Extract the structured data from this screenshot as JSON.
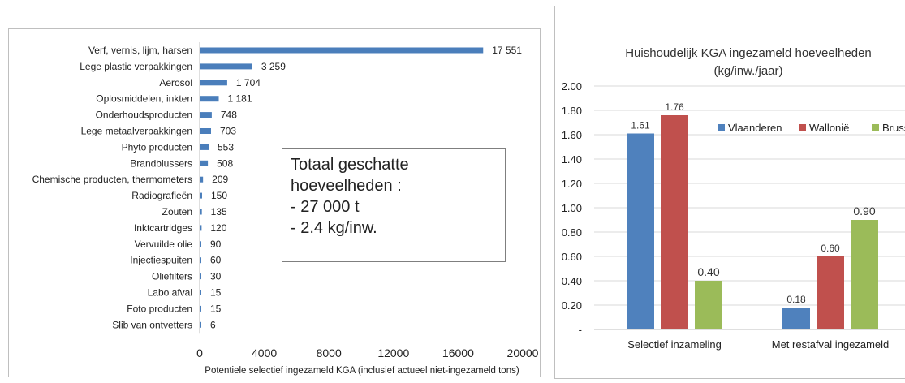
{
  "left_chart": {
    "xlabel": "Potentiele selectief ingezameld KGA (inclusief actueel niet-ingezameld tons)"
  },
  "callout": {
    "lines": [
      "Totaal geschatte",
      "hoeveelheden :",
      "- 27 000 t",
      "- 2.4 kg/inw."
    ]
  },
  "right_chart": {
    "title_line1": "Huishoudelijk  KGA ingezameld hoeveelheden",
    "title_line2": "(kg/inw./jaar)"
  },
  "chart_data": [
    {
      "type": "bar",
      "orientation": "horizontal",
      "categories": [
        "Verf, vernis, lijm, harsen",
        "Lege plastic verpakkingen",
        "Aerosol",
        "Oplosmiddelen, inkten",
        "Onderhoudsproducten",
        "Lege metaalverpakkingen",
        "Phyto producten",
        "Brandblussers",
        "Chemische producten, thermometers",
        "Radiografieën",
        "Zouten",
        "Inktcartridges",
        "Vervuilde olie",
        "Injectiespuiten",
        "Oliefilters",
        "Labo afval",
        "Foto producten",
        "Slib van ontvetters"
      ],
      "values": [
        17551,
        3259,
        1704,
        1181,
        748,
        703,
        553,
        508,
        209,
        150,
        135,
        120,
        90,
        60,
        30,
        15,
        15,
        6
      ],
      "value_labels": [
        "17 551",
        "3 259",
        "1 704",
        "1 181",
        "748",
        "703",
        "553",
        "508",
        "209",
        "150",
        "135",
        "120",
        "90",
        "60",
        "30",
        "15",
        "15",
        "6"
      ],
      "xlim": [
        0,
        20000
      ],
      "xticks": [
        0,
        4000,
        8000,
        12000,
        16000,
        20000
      ],
      "xtick_labels": [
        "0",
        "4000",
        "8000",
        "12000",
        "16000",
        "20000"
      ],
      "xlabel": "Potentiele selectief ingezameld KGA (inclusief actueel niet-ingezameld tons)",
      "color": "#4a7ebb",
      "grid": false
    },
    {
      "type": "bar",
      "title": "Huishoudelijk  KGA ingezameld hoeveelheden (kg/inw./jaar)",
      "categories": [
        "Selectief inzameling",
        "Met restafval ingezameld"
      ],
      "series": [
        {
          "name": "Vlaanderen",
          "values": [
            1.61,
            0.18
          ],
          "labels": [
            "1.61",
            "0.18"
          ],
          "color": "#4f81bd"
        },
        {
          "name": "Wallonië",
          "values": [
            1.76,
            0.6
          ],
          "labels": [
            "1.76",
            "0.60"
          ],
          "color": "#c0504d"
        },
        {
          "name": "Brussel",
          "values": [
            0.4,
            0.9
          ],
          "labels": [
            "0.40",
            "0.90"
          ],
          "color": "#9bbb59"
        }
      ],
      "ylim": [
        0,
        2.0
      ],
      "yticks": [
        0,
        0.2,
        0.4,
        0.6,
        0.8,
        1.0,
        1.2,
        1.4,
        1.6,
        1.8,
        2.0
      ],
      "ytick_labels": [
        "-",
        "0.20",
        "0.40",
        "0.60",
        "0.80",
        "1.00",
        "1.20",
        "1.40",
        "1.60",
        "1.80",
        "2.00"
      ],
      "legend": "top-right",
      "grid": true
    }
  ]
}
